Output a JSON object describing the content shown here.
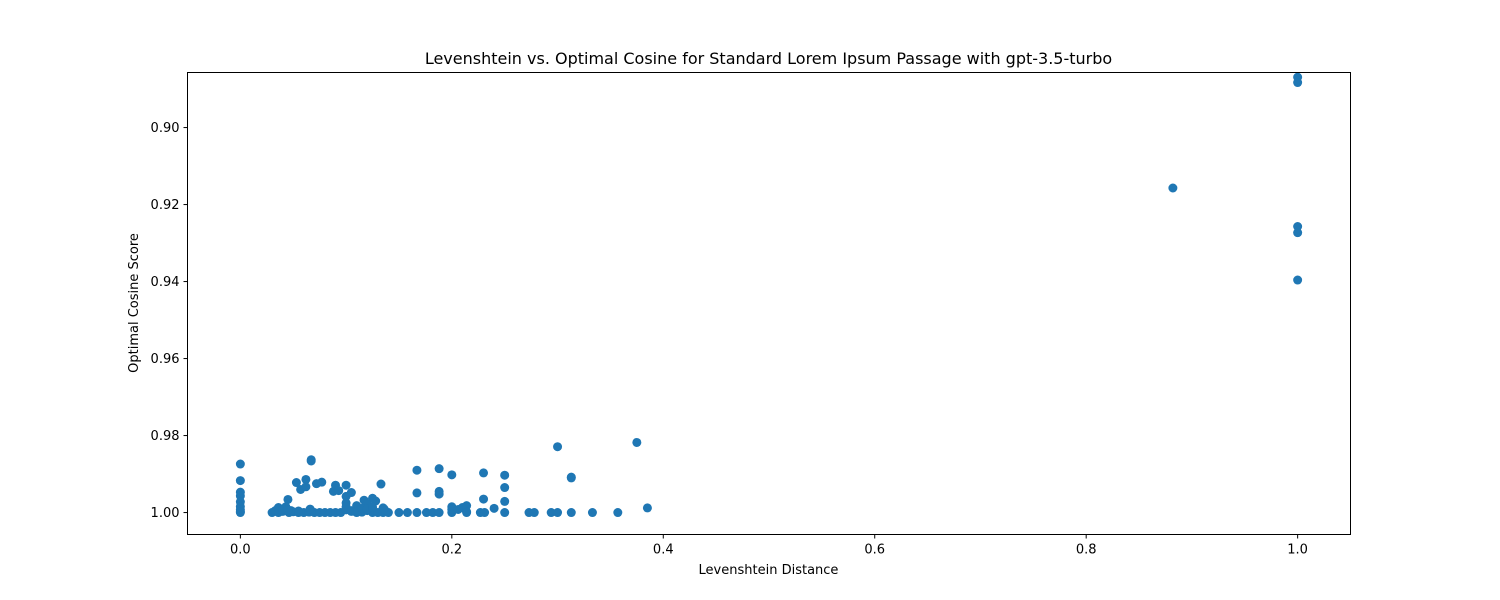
{
  "chart_data": {
    "type": "scatter",
    "title": "Levenshtein vs. Optimal Cosine for Standard Lorem Ipsum Passage with gpt-3.5-turbo",
    "xlabel": "Levenshtein Distance",
    "ylabel": "Optimal Cosine Score",
    "xlim": [
      -0.05,
      1.05
    ],
    "ylim": [
      1.0057,
      0.8857
    ],
    "y_inverted": true,
    "grid": false,
    "legend": "none",
    "x_ticks": [
      0.0,
      0.2,
      0.4,
      0.6,
      0.8,
      1.0
    ],
    "x_tick_labels": [
      "0.0",
      "0.2",
      "0.4",
      "0.6",
      "0.8",
      "1.0"
    ],
    "y_ticks": [
      0.9,
      0.92,
      0.94,
      0.96,
      0.98,
      1.0
    ],
    "y_tick_labels": [
      "0.90",
      "0.92",
      "0.94",
      "0.96",
      "0.98",
      "1.00"
    ],
    "marker_color": "#1f77b4",
    "series": [
      {
        "x": [
          1.0,
          1.0,
          1.0,
          1.0,
          1.0,
          0.882,
          0.375,
          0.3,
          0.313,
          0.313,
          0.385,
          0.0,
          0.0,
          0.0,
          0.0,
          0.0,
          0.0,
          0.0,
          0.0,
          0.0,
          0.067,
          0.067,
          0.072,
          0.077,
          0.062,
          0.053,
          0.057,
          0.062,
          0.045,
          0.048,
          0.09,
          0.1,
          0.1,
          0.105,
          0.088,
          0.093,
          0.1,
          0.117,
          0.128,
          0.125,
          0.133,
          0.135,
          0.11,
          0.12,
          0.167,
          0.167,
          0.188,
          0.188,
          0.188,
          0.2,
          0.2,
          0.21,
          0.214,
          0.214,
          0.23,
          0.23,
          0.25,
          0.25,
          0.25,
          0.03,
          0.033,
          0.036,
          0.04,
          0.043,
          0.046,
          0.05,
          0.055,
          0.06,
          0.065,
          0.07,
          0.075,
          0.08,
          0.085,
          0.09,
          0.095,
          0.1,
          0.105,
          0.11,
          0.115,
          0.12,
          0.125,
          0.13,
          0.135,
          0.14,
          0.15,
          0.158,
          0.167,
          0.176,
          0.182,
          0.188,
          0.2,
          0.214,
          0.227,
          0.231,
          0.25,
          0.273,
          0.278,
          0.294,
          0.3,
          0.313,
          0.333,
          0.357,
          0.036,
          0.04,
          0.045,
          0.055,
          0.066,
          0.1,
          0.105,
          0.111,
          0.115,
          0.12,
          0.125,
          0.136,
          0.2,
          0.206,
          0.24
        ],
        "y": [
          0.8869,
          0.8883,
          0.9257,
          0.9273,
          0.9396,
          0.9157,
          0.9818,
          0.9829,
          0.9908,
          0.991,
          0.9988,
          0.9874,
          0.9917,
          0.9947,
          0.9957,
          0.9972,
          0.9984,
          0.9993,
          1.0,
          0.9998,
          0.9863,
          0.9866,
          0.9925,
          0.9921,
          0.9914,
          0.9922,
          0.994,
          0.9933,
          0.9966,
          0.9995,
          0.9929,
          0.9929,
          0.9958,
          0.9948,
          0.9945,
          0.9943,
          0.9975,
          0.9968,
          0.997,
          0.9963,
          0.9926,
          0.9988,
          0.9982,
          0.9978,
          0.989,
          0.9949,
          0.9886,
          0.9945,
          0.9952,
          0.9902,
          0.9985,
          0.9987,
          0.9982,
          0.9998,
          0.9897,
          0.9965,
          0.9903,
          0.9935,
          0.9971,
          1.0,
          0.9995,
          1.0,
          0.9997,
          0.9985,
          1.0,
          0.9998,
          1.0,
          1.0,
          0.9999,
          1.0,
          1.0,
          1.0,
          1.0,
          1.0,
          1.0,
          0.9993,
          0.9997,
          1.0,
          0.9999,
          0.9995,
          1.0,
          1.0,
          1.0,
          1.0,
          1.0,
          1.0,
          1.0,
          1.0,
          1.0,
          1.0,
          1.0,
          1.0,
          1.0,
          1.0,
          1.0,
          1.0,
          1.0,
          1.0,
          1.0,
          1.0,
          1.0,
          1.0,
          0.9987,
          0.9992,
          0.9993,
          0.9996,
          0.9991,
          0.9985,
          0.9995,
          0.9998,
          0.9989,
          0.9991,
          0.9986,
          0.9991,
          0.9992,
          0.9992,
          0.9989
        ]
      }
    ]
  }
}
